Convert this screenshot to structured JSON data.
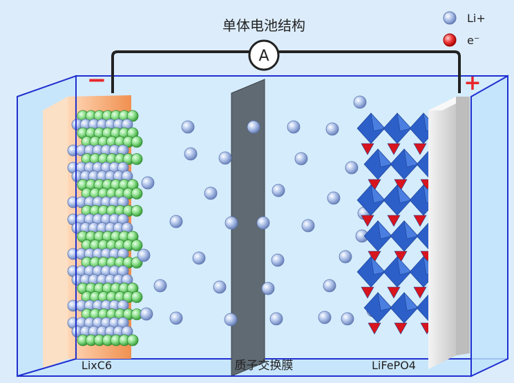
{
  "title": "单体电池结构",
  "ammeter": "A",
  "terminals": {
    "negative": "−",
    "positive": "+"
  },
  "legend": [
    {
      "label": "Li+",
      "color": "#8fa9d9"
    },
    {
      "label": "e⁻",
      "color": "#e8262a"
    }
  ],
  "labels": {
    "anode": "LixC6",
    "membrane": "质子交换膜",
    "cathode": "LiFePO4"
  },
  "colors": {
    "container_edge": "#1f2fd0",
    "electrolyte": "#c8e6fb",
    "anode_plate": "#f7b27a",
    "graphite": "#8be08b",
    "lithium_ion": "#a8bde6",
    "membrane": "#5f6a73",
    "cathode_octahedra": "#2d5fc8",
    "cathode_triangles": "#d8151e",
    "collector": "#e3e3e3",
    "wire": "#222222"
  }
}
